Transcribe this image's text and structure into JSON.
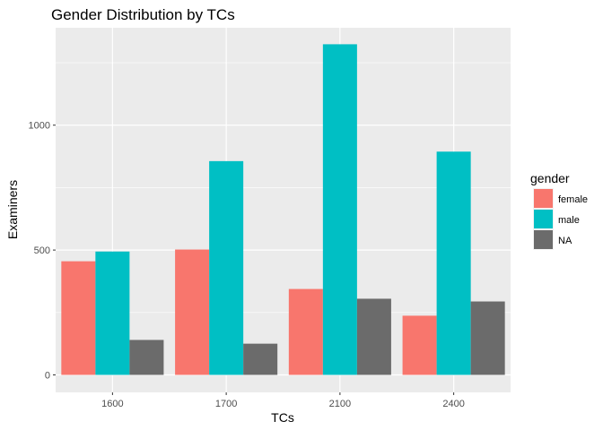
{
  "chart_data": {
    "type": "bar",
    "title": "Gender Distribution by TCs",
    "xlabel": "TCs",
    "ylabel": "Examiners",
    "categories": [
      "1600",
      "1700",
      "2100",
      "2400"
    ],
    "series": [
      {
        "name": "female",
        "color": "#F8766D",
        "values": [
          455,
          502,
          344,
          237
        ]
      },
      {
        "name": "male",
        "color": "#00BFC4",
        "values": [
          494,
          856,
          1324,
          894
        ]
      },
      {
        "name": "NA",
        "color": "#6B6B6B",
        "values": [
          140,
          125,
          305,
          294
        ]
      }
    ],
    "yticks": [
      0,
      500,
      1000
    ],
    "ylim": [
      -70,
      1390
    ],
    "legend": {
      "title": "gender",
      "position": "right"
    },
    "grid": true,
    "panel_background": "#EBEBEB"
  }
}
